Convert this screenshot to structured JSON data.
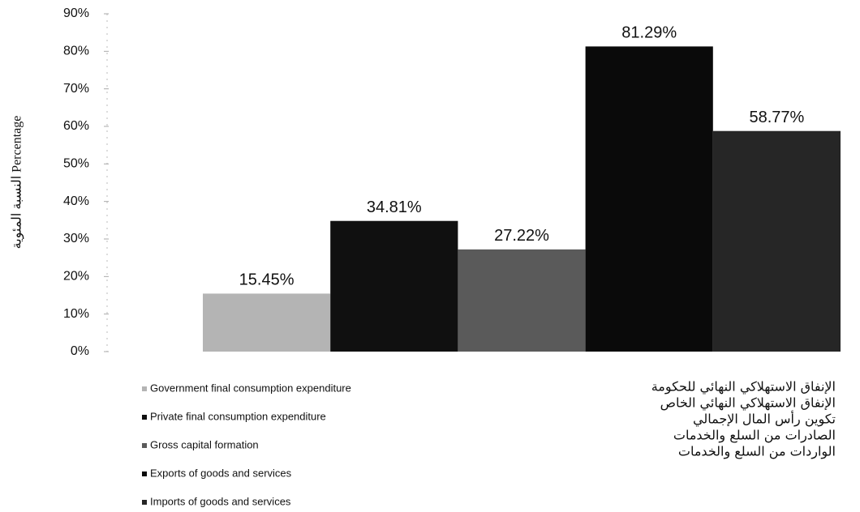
{
  "chart_data": {
    "type": "bar",
    "y_label": "النسبة المئوية Percentage",
    "ylim": [
      0,
      90
    ],
    "yticks": [
      {
        "value": 0,
        "label": "0%"
      },
      {
        "value": 10,
        "label": "10%"
      },
      {
        "value": 20,
        "label": "20%"
      },
      {
        "value": 30,
        "label": "30%"
      },
      {
        "value": 40,
        "label": "40%"
      },
      {
        "value": 50,
        "label": "50%"
      },
      {
        "value": 60,
        "label": "60%"
      },
      {
        "value": 70,
        "label": "70%"
      },
      {
        "value": 80,
        "label": "80%"
      },
      {
        "value": 90,
        "label": "90%"
      }
    ],
    "series": [
      {
        "name": "Government final consumption expenditure",
        "color": "#b4b4b4",
        "values": [
          15.45
        ],
        "value_labels": [
          "15.45%"
        ]
      },
      {
        "name": "Private final consumption expenditure",
        "color": "#101010",
        "values": [
          34.81
        ],
        "value_labels": [
          "34.81%"
        ]
      },
      {
        "name": "Gross capital formation",
        "color": "#5a5a5a",
        "values": [
          27.22
        ],
        "value_labels": [
          "27.22%"
        ]
      },
      {
        "name": "Exports of goods and services",
        "color": "#0a0a0a",
        "values": [
          81.29
        ],
        "value_labels": [
          "81.29%"
        ]
      },
      {
        "name": "Imports of goods and services",
        "color": "#262626",
        "values": [
          58.77
        ],
        "value_labels": [
          "58.77%"
        ]
      }
    ],
    "legend_arabic": [
      "الإنفاق الاستهلاكي النهائي للحكومة",
      "الإنفاق الاستهلاكي النهائي الخاص",
      "تكوين رأس المال الإجمالي",
      "الصادرات من السلع والخدمات",
      "الواردات من السلع والخدمات"
    ]
  }
}
